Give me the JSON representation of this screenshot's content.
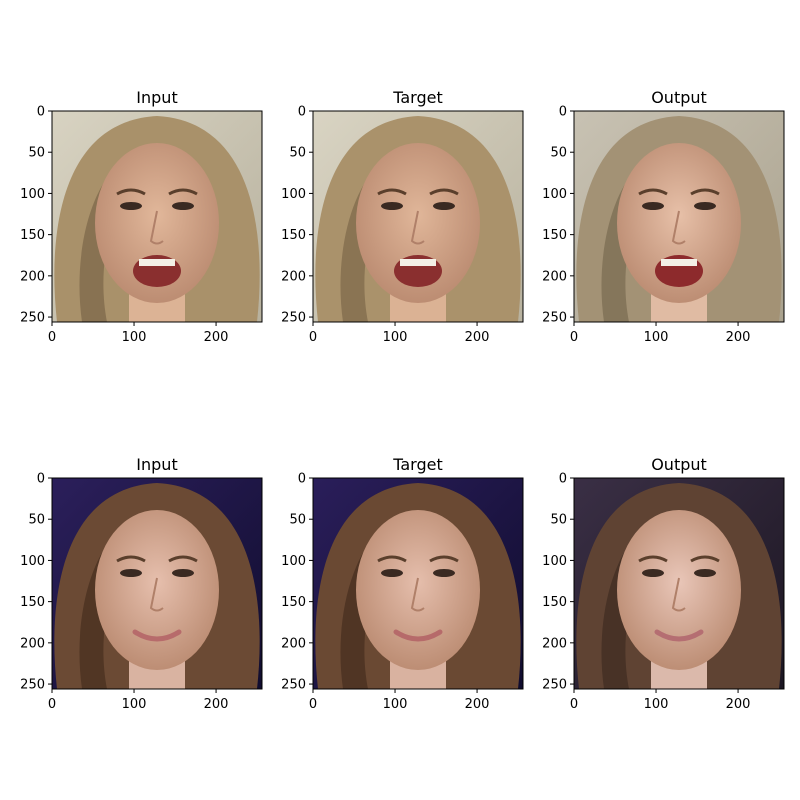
{
  "figure": {
    "panels": [
      {
        "title": "Input",
        "row": 0,
        "col": 0,
        "kind": "input",
        "palette": {
          "bg1": "#d8d3c2",
          "bg2": "#b7b19e",
          "hair": "#a9916a",
          "hairDark": "#6e5a3e",
          "skin": "#e1b79a",
          "mouth": "#8a2f2f"
        }
      },
      {
        "title": "Target",
        "row": 0,
        "col": 1,
        "kind": "target",
        "palette": {
          "bg1": "#d9d4c3",
          "bg2": "#b8b29f",
          "hair": "#aa926b",
          "hairDark": "#6f5b3f",
          "skin": "#e0b699",
          "mouth": "#8a2f2f"
        }
      },
      {
        "title": "Output",
        "row": 0,
        "col": 2,
        "kind": "output",
        "palette": {
          "bg1": "#c8c2b3",
          "bg2": "#aaa28e",
          "hair": "#a39275",
          "hairDark": "#6d5e46",
          "skin": "#e7c0a8",
          "mouth": "#8d2a2c"
        }
      },
      {
        "title": "Input",
        "row": 1,
        "col": 0,
        "kind": "input",
        "palette": {
          "bg1": "#2b1f5b",
          "bg2": "#110d2f",
          "hair": "#6b4a34",
          "hairDark": "#3c2618",
          "skin": "#e6bfad",
          "mouth": "#b76b6b"
        }
      },
      {
        "title": "Target",
        "row": 1,
        "col": 1,
        "kind": "target",
        "palette": {
          "bg1": "#2a1e5a",
          "bg2": "#100c2e",
          "hair": "#6a4933",
          "hairDark": "#3b2517",
          "skin": "#e5beac",
          "mouth": "#b66a6a"
        }
      },
      {
        "title": "Output",
        "row": 1,
        "col": 2,
        "kind": "output",
        "palette": {
          "bg1": "#3a2f45",
          "bg2": "#1c1622",
          "hair": "#5f4333",
          "hairDark": "#35241b",
          "skin": "#e9c6b8",
          "mouth": "#b56e72"
        }
      }
    ],
    "axes": {
      "xlim": [
        0,
        256
      ],
      "ylim": [
        256,
        0
      ],
      "xticks": [
        0,
        100,
        200
      ],
      "yticks": [
        0,
        50,
        100,
        150,
        200,
        250
      ],
      "xtick_labels": [
        "0",
        "100",
        "200"
      ],
      "ytick_labels": [
        "0",
        "50",
        "100",
        "150",
        "200",
        "250"
      ]
    }
  }
}
